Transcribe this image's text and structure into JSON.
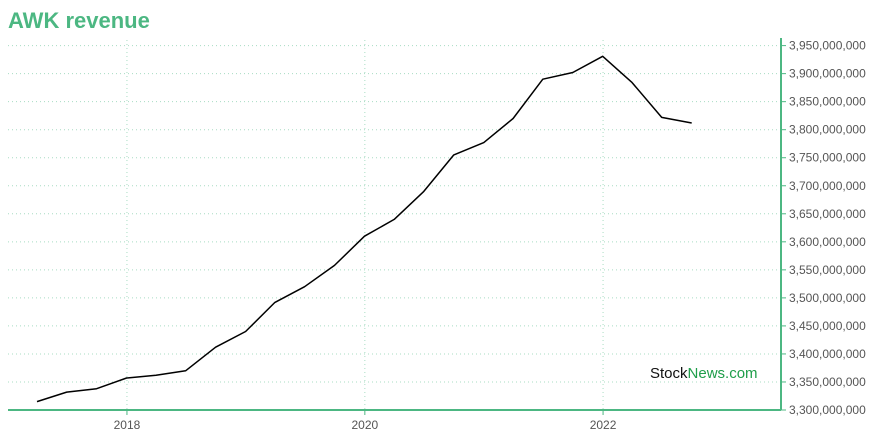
{
  "title": "AWK revenue",
  "watermark": {
    "part1": "Stock",
    "part2": "News.com"
  },
  "colors": {
    "title": "#4cb782",
    "axis": "#4cb782",
    "grid": "#a8dcc3",
    "line": "#000000",
    "watermark_accent": "#1f9e4a"
  },
  "chart_data": {
    "type": "line",
    "title": "AWK revenue",
    "xlabel": "",
    "ylabel": "",
    "x_tick_labels": [
      "2018",
      "2020",
      "2022"
    ],
    "y_tick_labels": [
      "3,300,000,000",
      "3,350,000,000",
      "3,400,000,000",
      "3,450,000,000",
      "3,500,000,000",
      "3,550,000,000",
      "3,600,000,000",
      "3,650,000,000",
      "3,700,000,000",
      "3,750,000,000",
      "3,800,000,000",
      "3,850,000,000",
      "3,900,000,000",
      "3,950,000,000"
    ],
    "ylim": [
      3300000000,
      3960000000
    ],
    "xlim": [
      "2017-01-01",
      "2023-07-01"
    ],
    "grid": true,
    "y_axis_side": "right",
    "series": [
      {
        "x": [
          "2017-03-31",
          "2017-06-30",
          "2017-09-30",
          "2017-12-31",
          "2018-03-31",
          "2018-06-30",
          "2018-09-30",
          "2018-12-31",
          "2019-03-31",
          "2019-06-30",
          "2019-09-30",
          "2019-12-31",
          "2020-03-31",
          "2020-06-30",
          "2020-09-30",
          "2020-12-31",
          "2021-03-31",
          "2021-06-30",
          "2021-09-30",
          "2021-12-31",
          "2022-03-31",
          "2022-06-30",
          "2022-09-30"
        ],
        "values": [
          3315000000,
          3332000000,
          3338000000,
          3357000000,
          3362000000,
          3370000000,
          3412000000,
          3440000000,
          3492000000,
          3520000000,
          3558000000,
          3610000000,
          3640000000,
          3690000000,
          3755000000,
          3777000000,
          3820000000,
          3890000000,
          3902000000,
          3931000000,
          3884000000,
          3822000000,
          3812000000
        ]
      }
    ]
  }
}
